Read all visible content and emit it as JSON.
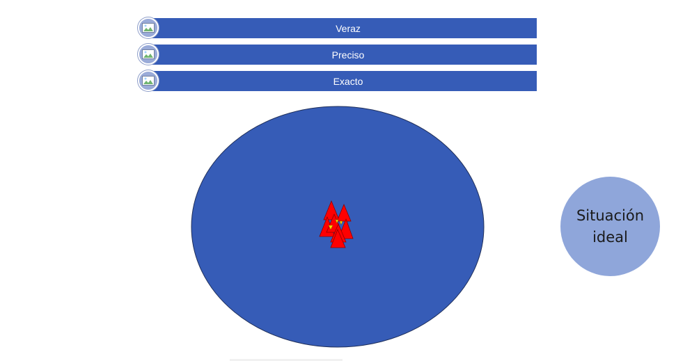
{
  "bars": [
    {
      "label": "Veraz",
      "icon": "picture-icon"
    },
    {
      "label": "Preciso",
      "icon": "picture-icon"
    },
    {
      "label": "Exacto",
      "icon": "picture-icon"
    }
  ],
  "target": {
    "fill": "#365cb7",
    "marker_fill": "#ff0000",
    "marker_accent": "#ffd700",
    "marker_count": 7
  },
  "ideal": {
    "line1": "Situación",
    "line2": "ideal",
    "fill": "#8fa6da"
  }
}
